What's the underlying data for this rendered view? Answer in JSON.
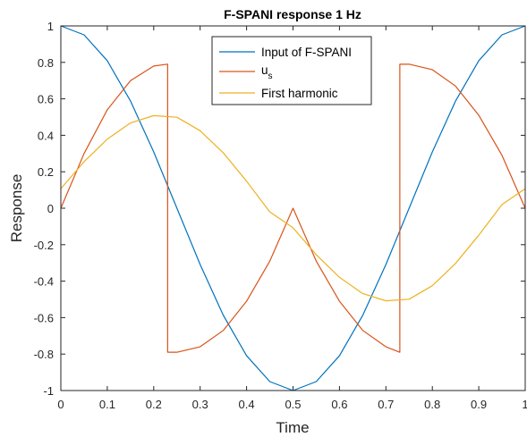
{
  "chart_data": {
    "type": "line",
    "title": "F-SPANI response 1 Hz",
    "xlabel": "Time",
    "ylabel": "Response",
    "xlim": [
      0,
      1
    ],
    "ylim": [
      -1,
      1
    ],
    "x_ticks": [
      "0",
      "0.1",
      "0.2",
      "0.3",
      "0.4",
      "0.5",
      "0.6",
      "0.7",
      "0.8",
      "0.9",
      "1"
    ],
    "y_ticks": [
      "1",
      "0.8",
      "0.6",
      "0.4",
      "0.2",
      "0",
      "-0.2",
      "-0.4",
      "-0.6",
      "-0.8",
      "-1"
    ],
    "grid": false,
    "legend_position": "top-center",
    "series": [
      {
        "name": "Input of F-SPANI",
        "color": "#0072BD",
        "x": [
          0,
          0.05,
          0.1,
          0.15,
          0.2,
          0.25,
          0.3,
          0.35,
          0.4,
          0.45,
          0.5,
          0.55,
          0.6,
          0.65,
          0.7,
          0.75,
          0.8,
          0.85,
          0.9,
          0.95,
          1
        ],
        "y": [
          1,
          0.951,
          0.809,
          0.588,
          0.309,
          0.0,
          -0.309,
          -0.588,
          -0.809,
          -0.951,
          -1,
          -0.951,
          -0.809,
          -0.588,
          -0.309,
          0.0,
          0.309,
          0.588,
          0.809,
          0.951,
          1
        ]
      },
      {
        "name_main": "u",
        "name_sub": "s",
        "color": "#D95319",
        "x": [
          0,
          0.05,
          0.1,
          0.15,
          0.2,
          0.23,
          0.23,
          0.25,
          0.3,
          0.35,
          0.4,
          0.45,
          0.5,
          0.55,
          0.6,
          0.65,
          0.7,
          0.73,
          0.73,
          0.75,
          0.8,
          0.85,
          0.9,
          0.95,
          1
        ],
        "y": [
          0,
          0.3,
          0.54,
          0.7,
          0.78,
          0.79,
          -0.79,
          -0.79,
          -0.76,
          -0.67,
          -0.51,
          -0.29,
          0,
          -0.29,
          -0.51,
          -0.67,
          -0.76,
          -0.79,
          0.79,
          0.79,
          0.76,
          0.67,
          0.51,
          0.29,
          0
        ]
      },
      {
        "name": "First harmonic",
        "color": "#EDB120",
        "x": [
          0,
          0.05,
          0.1,
          0.15,
          0.2,
          0.25,
          0.3,
          0.35,
          0.4,
          0.45,
          0.5,
          0.55,
          0.6,
          0.65,
          0.7,
          0.75,
          0.8,
          0.85,
          0.9,
          0.95,
          1
        ],
        "y": [
          0.107,
          0.255,
          0.379,
          0.468,
          0.508,
          0.499,
          0.425,
          0.303,
          0.148,
          -0.02,
          -0.107,
          -0.255,
          -0.379,
          -0.468,
          -0.508,
          -0.499,
          -0.425,
          -0.303,
          -0.148,
          0.02,
          0.107
        ]
      }
    ]
  }
}
